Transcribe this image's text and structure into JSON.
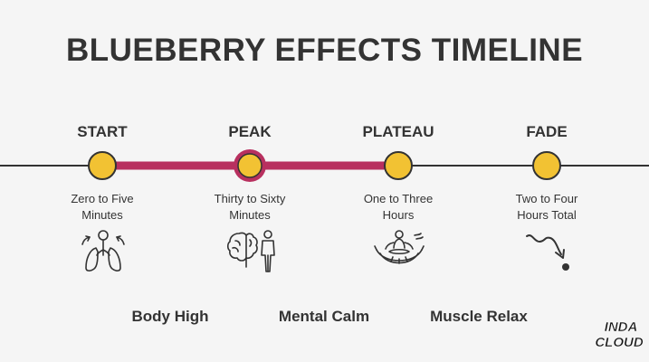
{
  "title": "BLUEBERRY EFFECTS TIMELINE",
  "colors": {
    "text": "#333333",
    "node_fill": "#f2c233",
    "connector": "#b8305f",
    "line": "#333333",
    "background": "#f5f5f5"
  },
  "stages": [
    {
      "label": "START",
      "desc_line1": "Zero to Five",
      "desc_line2": "Minutes",
      "icon": "lungs-breathing-icon"
    },
    {
      "label": "PEAK",
      "desc_line1": "Thirty to Sixty",
      "desc_line2": "Minutes",
      "icon": "brain-person-icon"
    },
    {
      "label": "PLATEAU",
      "desc_line1": "One to Three",
      "desc_line2": "Hours",
      "icon": "hammock-meditation-icon"
    },
    {
      "label": "FADE",
      "desc_line1": "Two to Four",
      "desc_line2": "Hours Total",
      "icon": "downward-wave-arrow-icon"
    }
  ],
  "effects": [
    "Body High",
    "Mental Calm",
    "Muscle Relax"
  ],
  "logo": {
    "line1": "INDA",
    "line2": "CLOUD"
  }
}
